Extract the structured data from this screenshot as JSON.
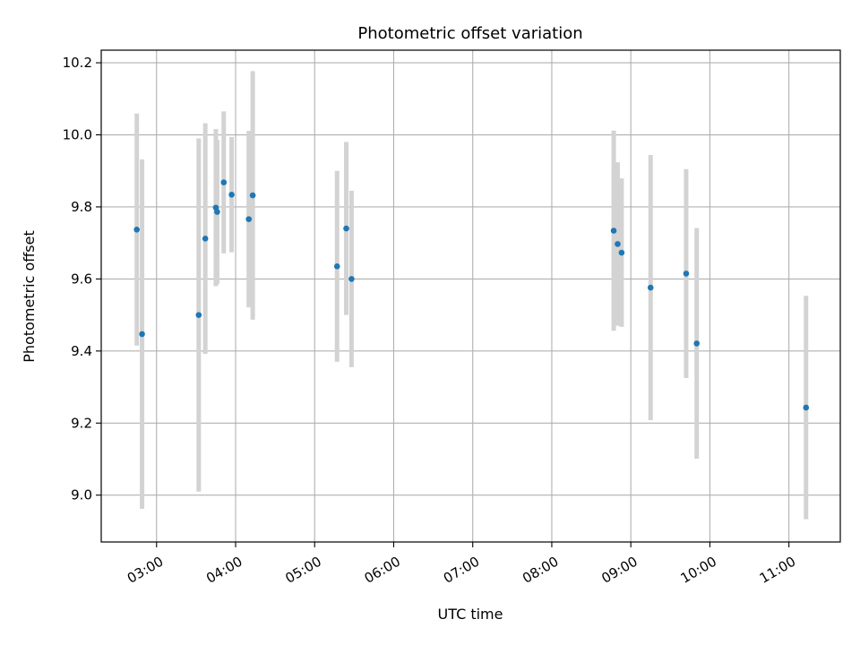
{
  "chart_data": {
    "type": "scatter",
    "title": "Photometric offset variation",
    "xlabel": "UTC time",
    "ylabel": "Photometric offset",
    "x_tick_labels": [
      "03:00",
      "04:00",
      "05:00",
      "06:00",
      "07:00",
      "08:00",
      "09:00",
      "10:00",
      "11:00"
    ],
    "y_tick_labels": [
      "9.0",
      "9.2",
      "9.4",
      "9.6",
      "9.8",
      "10.0",
      "10.2"
    ],
    "xlim": [
      "02:18",
      "11:39"
    ],
    "ylim": [
      8.87,
      10.235
    ],
    "grid": true,
    "colors": {
      "points": "#1f77b4",
      "error_bars": "#d3d3d3",
      "grid": "#b0b0b0"
    },
    "points": [
      {
        "time": "02:45",
        "y": 9.737,
        "err": 0.322
      },
      {
        "time": "02:49",
        "y": 9.447,
        "err": 0.485
      },
      {
        "time": "03:32",
        "y": 9.5,
        "err": 0.49
      },
      {
        "time": "03:37",
        "y": 9.712,
        "err": 0.32
      },
      {
        "time": "03:45",
        "y": 9.798,
        "err": 0.218
      },
      {
        "time": "03:46",
        "y": 9.786,
        "err": 0.2
      },
      {
        "time": "03:51",
        "y": 9.868,
        "err": 0.197
      },
      {
        "time": "03:57",
        "y": 9.834,
        "err": 0.16
      },
      {
        "time": "04:10",
        "y": 9.766,
        "err": 0.245
      },
      {
        "time": "04:13",
        "y": 9.832,
        "err": 0.345
      },
      {
        "time": "05:17",
        "y": 9.635,
        "err": 0.265
      },
      {
        "time": "05:24",
        "y": 9.74,
        "err": 0.24
      },
      {
        "time": "05:28",
        "y": 9.6,
        "err": 0.245
      },
      {
        "time": "08:47",
        "y": 9.734,
        "err": 0.278
      },
      {
        "time": "08:50",
        "y": 9.697,
        "err": 0.227
      },
      {
        "time": "08:53",
        "y": 9.673,
        "err": 0.206
      },
      {
        "time": "09:15",
        "y": 9.576,
        "err": 0.368
      },
      {
        "time": "09:42",
        "y": 9.615,
        "err": 0.29
      },
      {
        "time": "09:50",
        "y": 9.421,
        "err": 0.32
      },
      {
        "time": "11:13",
        "y": 9.243,
        "err": 0.31
      }
    ]
  }
}
